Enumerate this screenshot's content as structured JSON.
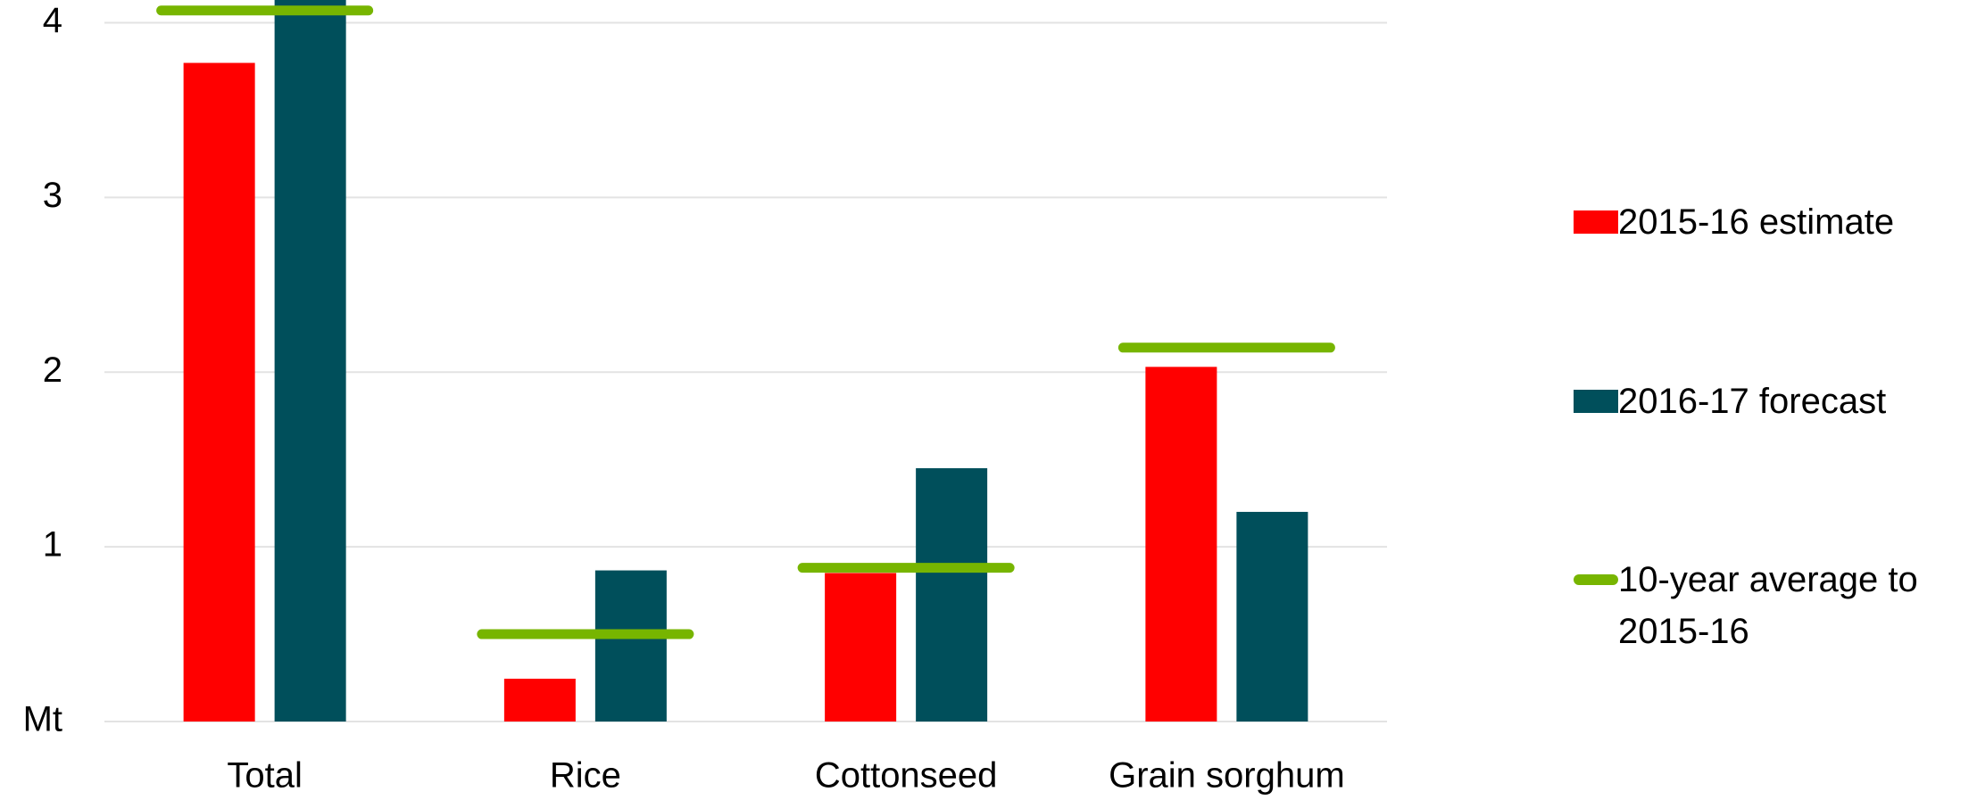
{
  "chart_data": {
    "type": "bar",
    "categories": [
      "Total",
      "Rice",
      "Cottonseed",
      "Grain sorghum"
    ],
    "series": [
      {
        "name": "2015-16 estimate",
        "color": "#ff0000",
        "values": [
          3.77,
          0.245,
          0.85,
          2.03
        ]
      },
      {
        "name": "2016-17 forecast",
        "color": "#004f5b",
        "values": [
          4.2,
          0.865,
          1.45,
          1.2
        ]
      },
      {
        "name": "10-year average to 2015-16",
        "color": "#77b500",
        "kind": "hline",
        "values": [
          4.07,
          0.5,
          0.88,
          2.14
        ]
      }
    ],
    "ylim": [
      0,
      4.13
    ],
    "yticks": [
      {
        "value": 0,
        "label": "Mt"
      },
      1,
      2,
      3,
      4
    ],
    "grid": true,
    "legend": "right"
  }
}
